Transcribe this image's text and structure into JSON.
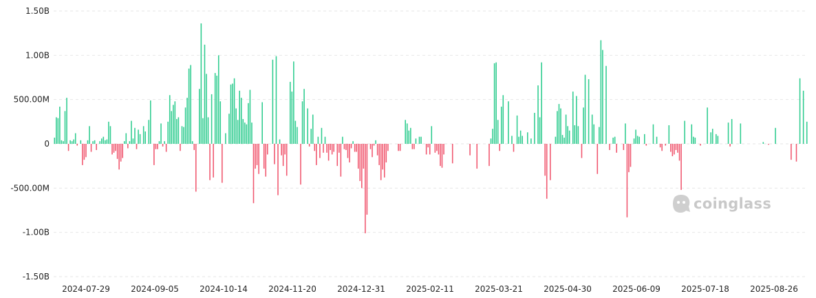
{
  "chart_data": {
    "type": "bar",
    "title": "",
    "xlabel": "",
    "ylabel": "",
    "ylim": [
      -1500000000,
      1500000000
    ],
    "y_ticks": [
      {
        "value": 1500000000,
        "label": "1.50B"
      },
      {
        "value": 1000000000,
        "label": "1.00B"
      },
      {
        "value": 500000000,
        "label": "500.00M"
      },
      {
        "value": 0,
        "label": "0"
      },
      {
        "value": -500000000,
        "label": "-500.00M"
      },
      {
        "value": -1000000000,
        "label": "-1.00B"
      },
      {
        "value": -1500000000,
        "label": "-1.50B"
      }
    ],
    "x_tick_labels": [
      "2024-07-29",
      "2024-09-05",
      "2024-10-14",
      "2024-11-20",
      "2024-12-31",
      "2025-02-11",
      "2025-03-21",
      "2025-04-30",
      "2025-06-09",
      "2025-07-18",
      "2025-08-26"
    ],
    "grid": true,
    "legend": "none",
    "positive_color": "#2ecc8f",
    "negative_color": "#f0566e",
    "values_millions": [
      70,
      300,
      290,
      420,
      40,
      30,
      370,
      520,
      -80,
      40,
      30,
      50,
      120,
      -20,
      0,
      40,
      -240,
      -180,
      -150,
      40,
      200,
      -90,
      30,
      40,
      -70,
      0,
      30,
      60,
      80,
      40,
      50,
      250,
      200,
      -120,
      -100,
      -80,
      -170,
      -290,
      -200,
      -160,
      30,
      120,
      -50,
      30,
      260,
      60,
      180,
      -60,
      160,
      110,
      0,
      200,
      140,
      0,
      270,
      490,
      0,
      -240,
      -60,
      -60,
      30,
      230,
      -30,
      30,
      -90,
      250,
      550,
      370,
      440,
      480,
      280,
      300,
      -80,
      200,
      190,
      410,
      520,
      850,
      890,
      30,
      -70,
      -540,
      0,
      620,
      1360,
      290,
      1120,
      790,
      300,
      -410,
      560,
      -380,
      800,
      770,
      1000,
      480,
      -440,
      0,
      120,
      0,
      340,
      670,
      680,
      740,
      400,
      270,
      600,
      520,
      280,
      240,
      220,
      460,
      610,
      240,
      -670,
      -280,
      -240,
      -340,
      0,
      470,
      -280,
      -370,
      -120,
      0,
      0,
      950,
      -230,
      990,
      -580,
      50,
      -130,
      -250,
      -120,
      -360,
      0,
      700,
      590,
      930,
      260,
      190,
      0,
      -460,
      480,
      620,
      0,
      400,
      -30,
      170,
      330,
      -80,
      -240,
      80,
      -160,
      180,
      -100,
      80,
      -100,
      -190,
      -70,
      -120,
      -90,
      0,
      -250,
      -100,
      -370,
      80,
      -60,
      -70,
      -160,
      -210,
      -50,
      30,
      -90,
      -90,
      -280,
      -420,
      -500,
      -280,
      -1010,
      -800,
      0,
      -60,
      -150,
      -20,
      40,
      -130,
      -240,
      -410,
      -290,
      -380,
      -210,
      -80,
      0,
      0,
      0,
      0,
      0,
      -80,
      -80,
      0,
      0,
      270,
      230,
      150,
      180,
      -60,
      -60,
      60,
      0,
      80,
      80,
      0,
      0,
      -120,
      -40,
      -120,
      200,
      0,
      -100,
      -80,
      -120,
      -250,
      -270,
      -120,
      0,
      0,
      0,
      0,
      -220,
      0,
      0,
      0,
      0,
      0,
      0,
      0,
      0,
      0,
      -130,
      0,
      0,
      0,
      -280,
      0,
      0,
      0,
      0,
      0,
      0,
      -250,
      60,
      170,
      910,
      920,
      270,
      -80,
      420,
      550,
      0,
      0,
      480,
      0,
      90,
      -90,
      0,
      320,
      80,
      150,
      90,
      0,
      0,
      130,
      0,
      60,
      0,
      350,
      0,
      660,
      300,
      920,
      0,
      -360,
      -620,
      0,
      -410,
      0,
      0,
      80,
      370,
      450,
      400,
      100,
      70,
      330,
      200,
      150,
      0,
      590,
      210,
      540,
      200,
      0,
      -160,
      410,
      780,
      0,
      730,
      0,
      330,
      220,
      0,
      -340,
      190,
      1170,
      1060,
      0,
      880,
      0,
      -70,
      0,
      70,
      80,
      -100,
      0,
      0,
      0,
      -70,
      230,
      -830,
      -320,
      -260,
      0,
      60,
      160,
      90,
      80,
      0,
      0,
      110,
      -20,
      0,
      0,
      0,
      220,
      0,
      80,
      0,
      -40,
      -80,
      0,
      -20,
      0,
      210,
      -90,
      -140,
      -120,
      -70,
      -100,
      -190,
      -520,
      0,
      260,
      0,
      0,
      0,
      220,
      80,
      70,
      0,
      0,
      -20,
      0,
      0,
      0,
      410,
      0,
      130,
      170,
      0,
      110,
      90,
      0,
      0,
      0,
      0,
      0,
      240,
      -30,
      280,
      0,
      0,
      0,
      0,
      230,
      0,
      0,
      0,
      0,
      0,
      0,
      0,
      0,
      0,
      0,
      0,
      0,
      20,
      0,
      0,
      -10,
      0,
      0,
      0,
      180,
      0,
      0,
      0,
      0,
      0,
      0,
      0,
      0,
      -180,
      0,
      0,
      -200,
      0,
      740,
      0,
      600,
      0,
      250
    ]
  },
  "watermark": {
    "text": "coinglass",
    "icon": "coinglass-logo-icon",
    "color": "#c8c8c8"
  }
}
